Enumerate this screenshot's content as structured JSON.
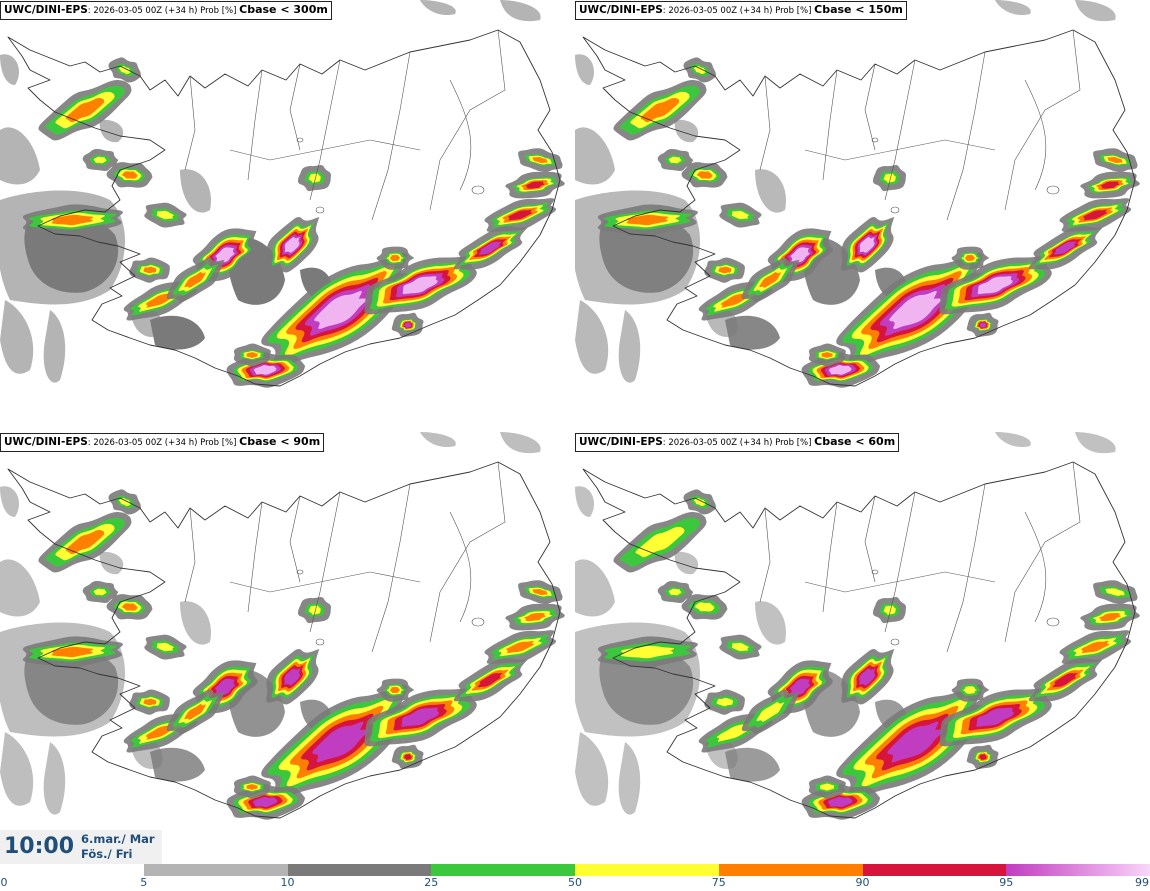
{
  "panels": [
    {
      "model": "UWC/DINI-EPS",
      "run": ": 2026-03-05 00Z (+34 h) Prob [%] ",
      "var": "Cbase < 300m"
    },
    {
      "model": "UWC/DINI-EPS",
      "run": ": 2026-03-05 00Z (+34 h) Prob [%] ",
      "var": "Cbase < 150m"
    },
    {
      "model": "UWC/DINI-EPS",
      "run": ": 2026-03-05 00Z (+34 h) Prob [%] ",
      "var": "Cbase < 90m"
    },
    {
      "model": "UWC/DINI-EPS",
      "run": ": 2026-03-05 00Z (+34 h) Prob [%] ",
      "var": "Cbase < 60m"
    }
  ],
  "time": {
    "clock": "10:00",
    "date": "6.mar./ Mar",
    "weekday": "Fös./ Fri"
  },
  "legend": {
    "ticks": [
      "0",
      "5",
      "10",
      "25",
      "50",
      "75",
      "90",
      "95",
      "99"
    ],
    "bins": [
      {
        "from": "5",
        "to": "10",
        "color": "#b4b4b4"
      },
      {
        "from": "10",
        "to": "25",
        "color": "#7a7a7a"
      },
      {
        "from": "25",
        "to": "50",
        "color": "#3cc83c"
      },
      {
        "from": "50",
        "to": "75",
        "color": "#ffff33"
      },
      {
        "from": "75",
        "to": "90",
        "color": "#ff7f00"
      },
      {
        "from": "90",
        "to": "95",
        "color": "#d7143c"
      },
      {
        "from": "95",
        "to": "99",
        "color": "#c03cc0"
      },
      {
        "from": "99",
        "to": "100",
        "color": "#f0b4f0"
      }
    ]
  }
}
